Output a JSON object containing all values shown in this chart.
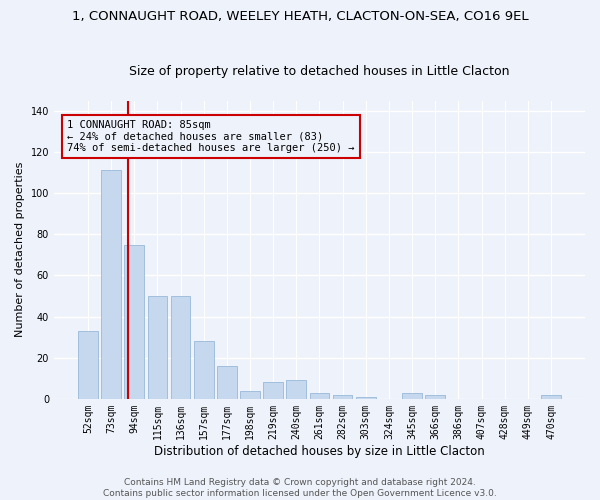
{
  "title": "1, CONNAUGHT ROAD, WEELEY HEATH, CLACTON-ON-SEA, CO16 9EL",
  "subtitle": "Size of property relative to detached houses in Little Clacton",
  "xlabel": "Distribution of detached houses by size in Little Clacton",
  "ylabel": "Number of detached properties",
  "bar_color": "#c5d8ee",
  "bar_edge_color": "#8ab0d4",
  "background_color": "#eef2fb",
  "grid_color": "#ffffff",
  "categories": [
    "52sqm",
    "73sqm",
    "94sqm",
    "115sqm",
    "136sqm",
    "157sqm",
    "177sqm",
    "198sqm",
    "219sqm",
    "240sqm",
    "261sqm",
    "282sqm",
    "303sqm",
    "324sqm",
    "345sqm",
    "366sqm",
    "386sqm",
    "407sqm",
    "428sqm",
    "449sqm",
    "470sqm"
  ],
  "values": [
    33,
    111,
    75,
    50,
    50,
    28,
    16,
    4,
    8,
    9,
    3,
    2,
    1,
    0,
    3,
    2,
    0,
    0,
    0,
    0,
    2
  ],
  "ylim": [
    0,
    145
  ],
  "yticks": [
    0,
    20,
    40,
    60,
    80,
    100,
    120,
    140
  ],
  "vline_x": 1.72,
  "vline_color": "#cc0000",
  "annotation_text": "1 CONNAUGHT ROAD: 85sqm\n← 24% of detached houses are smaller (83)\n74% of semi-detached houses are larger (250) →",
  "footer_line1": "Contains HM Land Registry data © Crown copyright and database right 2024.",
  "footer_line2": "Contains public sector information licensed under the Open Government Licence v3.0.",
  "title_fontsize": 9.5,
  "subtitle_fontsize": 9,
  "xlabel_fontsize": 8.5,
  "ylabel_fontsize": 8,
  "tick_fontsize": 7,
  "annot_fontsize": 7.5,
  "footer_fontsize": 6.5
}
